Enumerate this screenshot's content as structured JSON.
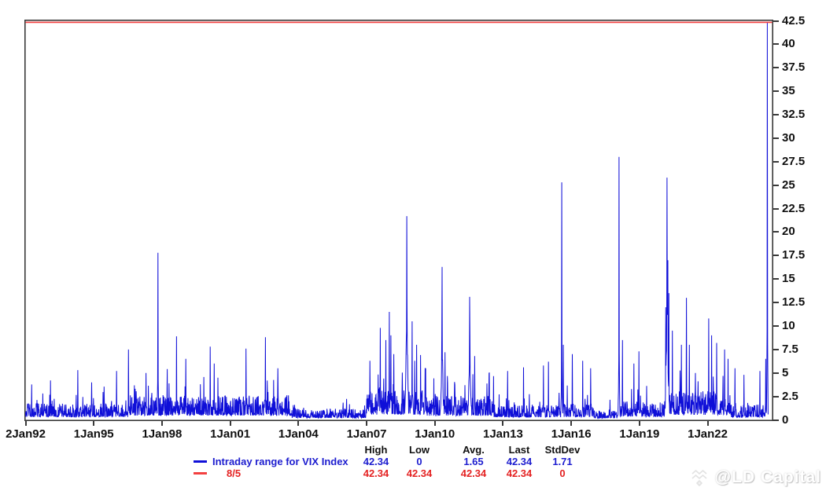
{
  "watermark": {
    "text": "@LD Capital"
  },
  "chart_data": {
    "type": "line",
    "title": "",
    "xlabel": "",
    "ylabel": "",
    "grid": false,
    "legend_position": "bottom",
    "x_axis": {
      "tick_labels": [
        "2Jan92",
        "1Jan95",
        "1Jan98",
        "1Jan01",
        "1Jan04",
        "1Jan07",
        "1Jan10",
        "1Jan13",
        "1Jan16",
        "1Jan19",
        "1Jan22"
      ],
      "tick_years": [
        1992,
        1995,
        1998,
        2001,
        2004,
        2007,
        2010,
        2013,
        2016,
        2019,
        2022
      ],
      "range_years": [
        1992.0,
        2024.87
      ]
    },
    "y_axis": {
      "side": "right",
      "range": [
        0,
        42.5
      ],
      "tick_values": [
        0,
        2.5,
        5,
        7.5,
        10,
        12.5,
        15,
        17.5,
        20,
        22.5,
        25,
        27.5,
        30,
        32.5,
        35,
        37.5,
        40,
        42.5
      ],
      "tick_labels": [
        "0",
        "2.5",
        "5",
        "7.5",
        "10",
        "12.5",
        "15",
        "17.5",
        "20",
        "22.5",
        "25",
        "27.5",
        "30",
        "32.5",
        "35",
        "37.5",
        "40",
        "42.5"
      ]
    },
    "stats_columns": [
      "High",
      "Low",
      "Avg.",
      "Last",
      "StdDev"
    ],
    "series": [
      {
        "name": "Intraday range for VIX Index",
        "color": "#0f0fd8",
        "kind": "spiky-line",
        "stats": {
          "high": "42.34",
          "low": "0",
          "avg": "1.65",
          "last": "42.34",
          "stddev": "1.71"
        },
        "data_start_year": 1992.0,
        "data_end_year": 2024.66,
        "volatility_profile": [
          {
            "from": 1992.0,
            "to": 1996.5,
            "base": 1.05,
            "amp": 3.2,
            "prob": 0.055
          },
          {
            "from": 1996.5,
            "to": 2003.6,
            "base": 1.55,
            "amp": 4.2,
            "prob": 0.07
          },
          {
            "from": 2003.6,
            "to": 2007.0,
            "base": 0.7,
            "amp": 1.9,
            "prob": 0.045
          },
          {
            "from": 2007.0,
            "to": 2009.6,
            "base": 1.9,
            "amp": 5.2,
            "prob": 0.09
          },
          {
            "from": 2009.6,
            "to": 2012.6,
            "base": 1.5,
            "amp": 4.0,
            "prob": 0.07
          },
          {
            "from": 2012.6,
            "to": 2015.3,
            "base": 0.95,
            "amp": 2.8,
            "prob": 0.05
          },
          {
            "from": 2015.3,
            "to": 2017.0,
            "base": 1.05,
            "amp": 3.0,
            "prob": 0.05
          },
          {
            "from": 2017.0,
            "to": 2018.05,
            "base": 0.6,
            "amp": 1.7,
            "prob": 0.04
          },
          {
            "from": 2018.05,
            "to": 2020.1,
            "base": 1.15,
            "amp": 3.2,
            "prob": 0.06
          },
          {
            "from": 2020.1,
            "to": 2023.0,
            "base": 1.8,
            "amp": 4.6,
            "prob": 0.08
          },
          {
            "from": 2023.0,
            "to": 2024.66,
            "base": 0.95,
            "amp": 2.8,
            "prob": 0.05
          }
        ],
        "major_spikes": [
          {
            "year": 1993.1,
            "value": 4.2
          },
          {
            "year": 1994.3,
            "value": 5.3
          },
          {
            "year": 1994.9,
            "value": 4.0
          },
          {
            "year": 1996.0,
            "value": 5.2
          },
          {
            "year": 1996.53,
            "value": 7.5
          },
          {
            "year": 1997.3,
            "value": 5.0
          },
          {
            "year": 1997.82,
            "value": 17.8
          },
          {
            "year": 1998.64,
            "value": 8.9
          },
          {
            "year": 1999.05,
            "value": 6.5
          },
          {
            "year": 2000.12,
            "value": 7.8
          },
          {
            "year": 2000.3,
            "value": 6.0
          },
          {
            "year": 2001.7,
            "value": 7.6
          },
          {
            "year": 2002.55,
            "value": 8.8
          },
          {
            "year": 2003.1,
            "value": 5.5
          },
          {
            "year": 2007.15,
            "value": 6.3
          },
          {
            "year": 2007.6,
            "value": 9.8
          },
          {
            "year": 2007.85,
            "value": 8.5
          },
          {
            "year": 2008.0,
            "value": 11.5
          },
          {
            "year": 2008.07,
            "value": 9.0
          },
          {
            "year": 2008.2,
            "value": 7.0
          },
          {
            "year": 2008.77,
            "value": 21.7,
            "cluster": true
          },
          {
            "year": 2009.0,
            "value": 10.5
          },
          {
            "year": 2009.2,
            "value": 8.0
          },
          {
            "year": 2009.6,
            "value": 5.5
          },
          {
            "year": 2010.32,
            "value": 16.3,
            "cluster": true
          },
          {
            "year": 2010.45,
            "value": 7.2
          },
          {
            "year": 2011.53,
            "value": 13.1,
            "cluster": true
          },
          {
            "year": 2011.75,
            "value": 6.8
          },
          {
            "year": 2012.4,
            "value": 5.0
          },
          {
            "year": 2013.2,
            "value": 5.2
          },
          {
            "year": 2013.9,
            "value": 5.6
          },
          {
            "year": 2014.78,
            "value": 5.8
          },
          {
            "year": 2015.0,
            "value": 6.2
          },
          {
            "year": 2015.58,
            "value": 25.3
          },
          {
            "year": 2015.65,
            "value": 8.0
          },
          {
            "year": 2016.05,
            "value": 7.0
          },
          {
            "year": 2016.5,
            "value": 6.3
          },
          {
            "year": 2016.85,
            "value": 5.5
          },
          {
            "year": 2018.1,
            "value": 28.0
          },
          {
            "year": 2018.25,
            "value": 8.5
          },
          {
            "year": 2018.75,
            "value": 6.0
          },
          {
            "year": 2018.98,
            "value": 7.3
          },
          {
            "year": 2020.16,
            "value": 12.0
          },
          {
            "year": 2020.21,
            "value": 25.8,
            "cluster": true
          },
          {
            "year": 2020.25,
            "value": 17.0
          },
          {
            "year": 2020.3,
            "value": 13.5
          },
          {
            "year": 2020.45,
            "value": 9.5
          },
          {
            "year": 2020.85,
            "value": 8.0
          },
          {
            "year": 2021.07,
            "value": 13.0
          },
          {
            "year": 2021.2,
            "value": 8.0
          },
          {
            "year": 2022.05,
            "value": 10.8
          },
          {
            "year": 2022.17,
            "value": 9.0
          },
          {
            "year": 2022.4,
            "value": 8.2
          },
          {
            "year": 2022.75,
            "value": 7.5
          },
          {
            "year": 2022.9,
            "value": 6.5
          },
          {
            "year": 2023.2,
            "value": 5.5
          },
          {
            "year": 2023.6,
            "value": 4.8
          },
          {
            "year": 2024.3,
            "value": 5.2
          },
          {
            "year": 2024.55,
            "value": 6.5
          },
          {
            "year": 2024.62,
            "value": 42.34
          }
        ]
      },
      {
        "name": "8/5",
        "color": "#f34040",
        "kind": "hline",
        "value": 42.34,
        "stats": {
          "high": "42.34",
          "low": "42.34",
          "avg": "42.34",
          "last": "42.34",
          "stddev": "0"
        }
      }
    ]
  }
}
